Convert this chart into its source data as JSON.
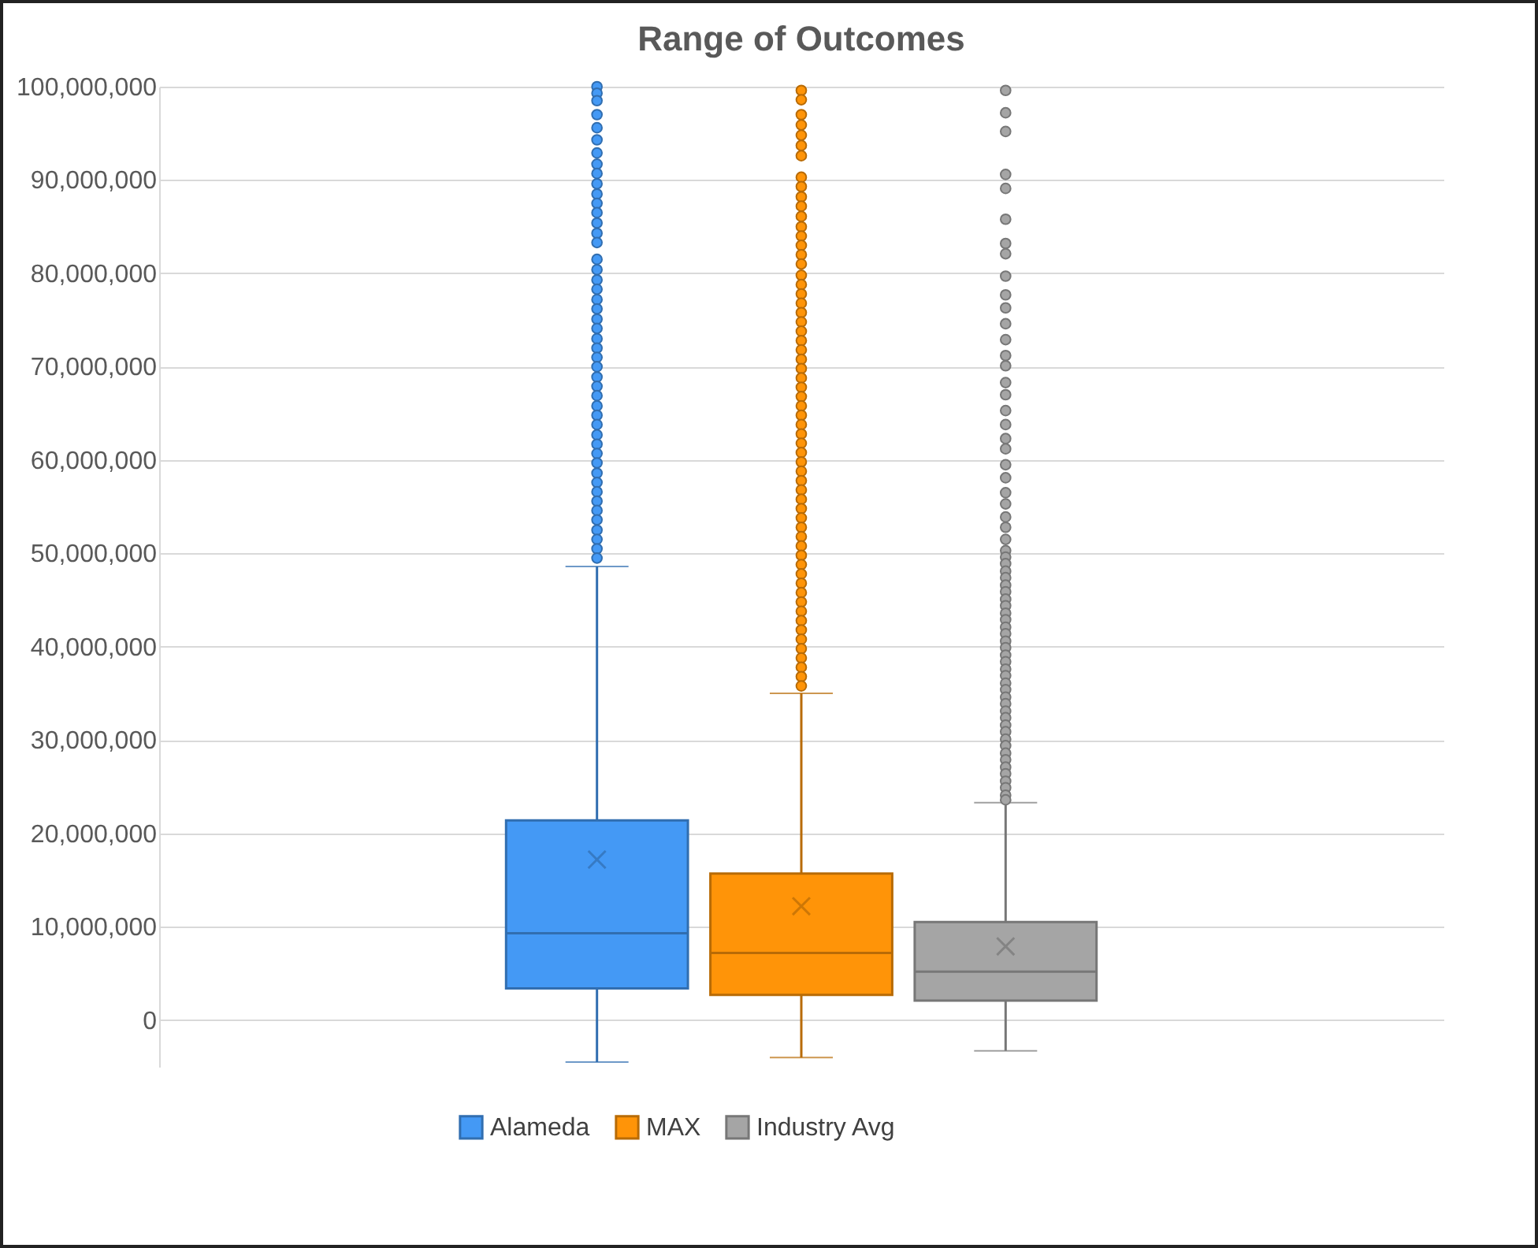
{
  "chart_data": {
    "type": "box",
    "title": "Range of Outcomes",
    "categories": [
      null
    ],
    "ylim": [
      -5000000,
      100000000
    ],
    "yticks": [
      0,
      {
        "value": 10000000,
        "label": "10,000,000"
      },
      {
        "value": 20000000,
        "label": "20,000,000"
      },
      {
        "value": 30000000,
        "label": "30,000,000"
      },
      {
        "value": 40000000,
        "label": "40,000,000"
      },
      {
        "value": 50000000,
        "label": "50,000,000"
      },
      {
        "value": 60000000,
        "label": "60,000,000"
      },
      {
        "value": 70000000,
        "label": "70,000,000"
      },
      {
        "value": 80000000,
        "label": "80,000,000"
      },
      {
        "value": 90000000,
        "label": "90,000,000"
      },
      {
        "value": 100000000,
        "label": "100,000,000"
      }
    ],
    "grid": "y",
    "legend": "bottom",
    "tick_labels": "y",
    "series": [
      {
        "name": "Alameda",
        "color": "#4499f5",
        "boxes": [
          {
            "low": -4500000,
            "q1": 3400000,
            "median": 9300000,
            "q3": 21400000,
            "high": 48600000,
            "mean": 17200000,
            "outliers": [
              100000000,
              99300000,
              98500000,
              97000000,
              95600000,
              94300000,
              92900000,
              91700000,
              90700000,
              89600000,
              88500000,
              87500000,
              86500000,
              85400000,
              84300000,
              83300000,
              81500000,
              80400000,
              79300000,
              78300000,
              77200000,
              76200000,
              75100000,
              74100000,
              73000000,
              72000000,
              71000000,
              70000000,
              68900000,
              67900000,
              66900000,
              65800000,
              64800000,
              63800000,
              62700000,
              61700000,
              60700000,
              59700000,
              58600000,
              57600000,
              56600000,
              55600000,
              54600000,
              53600000,
              52500000,
              51500000,
              50500000,
              49500000
            ]
          }
        ]
      },
      {
        "name": "MAX",
        "color": "#ff9408",
        "boxes": [
          {
            "low": -4000000,
            "q1": 2700000,
            "median": 7200000,
            "q3": 15700000,
            "high": 35000000,
            "mean": 12200000,
            "outliers": [
              99600000,
              98600000,
              97000000,
              95900000,
              94800000,
              93700000,
              92600000,
              90300000,
              89300000,
              88200000,
              87200000,
              86100000,
              85000000,
              84000000,
              83000000,
              82000000,
              81000000,
              79800000,
              78800000,
              77800000,
              76800000,
              75800000,
              74800000,
              73800000,
              72800000,
              71800000,
              70800000,
              69800000,
              68800000,
              67800000,
              66800000,
              65800000,
              64800000,
              63800000,
              62800000,
              61800000,
              60800000,
              59800000,
              58800000,
              57800000,
              56800000,
              55800000,
              54800000,
              53800000,
              52800000,
              51800000,
              50800000,
              49800000,
              48800000,
              47800000,
              46800000,
              45800000,
              44800000,
              43800000,
              42800000,
              41800000,
              40800000,
              39800000,
              38800000,
              37800000,
              36800000,
              35800000
            ]
          }
        ]
      },
      {
        "name": "Industry Avg",
        "color": "#a5a5a5",
        "boxes": [
          {
            "low": -3300000,
            "q1": 2100000,
            "median": 5200000,
            "q3": 10500000,
            "high": 23300000,
            "mean": 7900000,
            "outliers": [
              99600000,
              97200000,
              95200000,
              90600000,
              89100000,
              85800000,
              83200000,
              82100000,
              79700000,
              77700000,
              76300000,
              74600000,
              72900000,
              71200000,
              70100000,
              68300000,
              67000000,
              65300000,
              63800000,
              62300000,
              61200000,
              59500000,
              58100000,
              56500000,
              55300000,
              53900000,
              52800000,
              51500000,
              50300000,
              49600000,
              48900000,
              48100000,
              47400000,
              46600000,
              45900000,
              45100000,
              44400000,
              43600000,
              42900000,
              42100000,
              41400000,
              40600000,
              39900000,
              39100000,
              38400000,
              37600000,
              36900000,
              36100000,
              35400000,
              34600000,
              33900000,
              33100000,
              32400000,
              31600000,
              30900000,
              30100000,
              29400000,
              28600000,
              27900000,
              27100000,
              26400000,
              25600000,
              24900000,
              24100000,
              23600000
            ]
          }
        ]
      }
    ]
  }
}
